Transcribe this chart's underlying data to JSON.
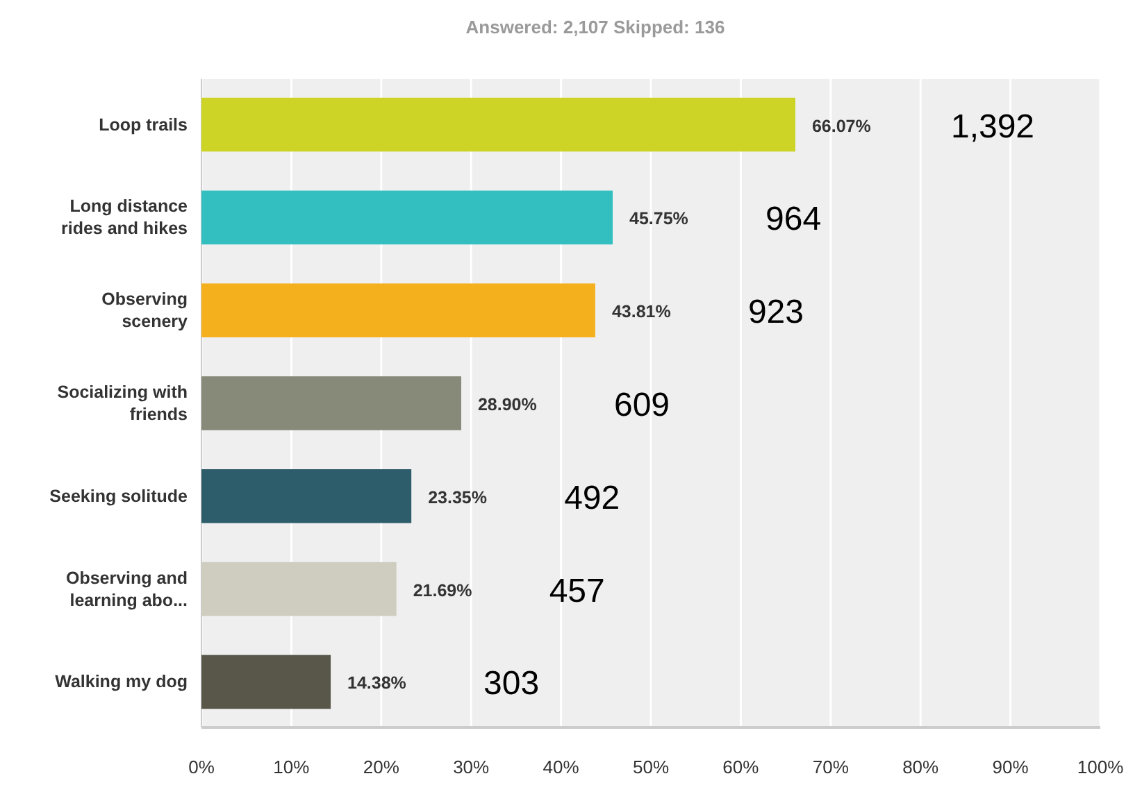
{
  "chart_data": {
    "type": "bar",
    "orientation": "horizontal",
    "title": "Answered: 2,107    Skipped: 136",
    "categories": [
      "Loop trails",
      "Long distance rides and hikes",
      "Observing scenery",
      "Socializing with friends",
      "Seeking solitude",
      "Observing and learning abo...",
      "Walking my dog"
    ],
    "values": [
      66.07,
      45.75,
      43.81,
      28.9,
      23.35,
      21.69,
      14.38
    ],
    "colors": [
      "#cdd426",
      "#33bfc0",
      "#f5b01e",
      "#878979",
      "#2d5c6a",
      "#cfcdc0",
      "#59574a"
    ],
    "value_labels": [
      "66.07%",
      "45.75%",
      "43.81%",
      "28.90%",
      "23.35%",
      "21.69%",
      "14.38%"
    ],
    "annotations": [
      "1,392",
      "964",
      "923",
      "609",
      "492",
      "457",
      "303"
    ],
    "xlim": [
      0,
      100
    ],
    "xticks": [
      {
        "value": 0,
        "label": "0%"
      },
      {
        "value": 10,
        "label": "10%"
      },
      {
        "value": 20,
        "label": "20%"
      },
      {
        "value": 30,
        "label": "30%"
      },
      {
        "value": 40,
        "label": "40%"
      },
      {
        "value": 50,
        "label": "50%"
      },
      {
        "value": 60,
        "label": "60%"
      },
      {
        "value": 70,
        "label": "70%"
      },
      {
        "value": 80,
        "label": "80%"
      },
      {
        "value": 90,
        "label": "90%"
      },
      {
        "value": 100,
        "label": "100%"
      }
    ],
    "grid": "x"
  }
}
